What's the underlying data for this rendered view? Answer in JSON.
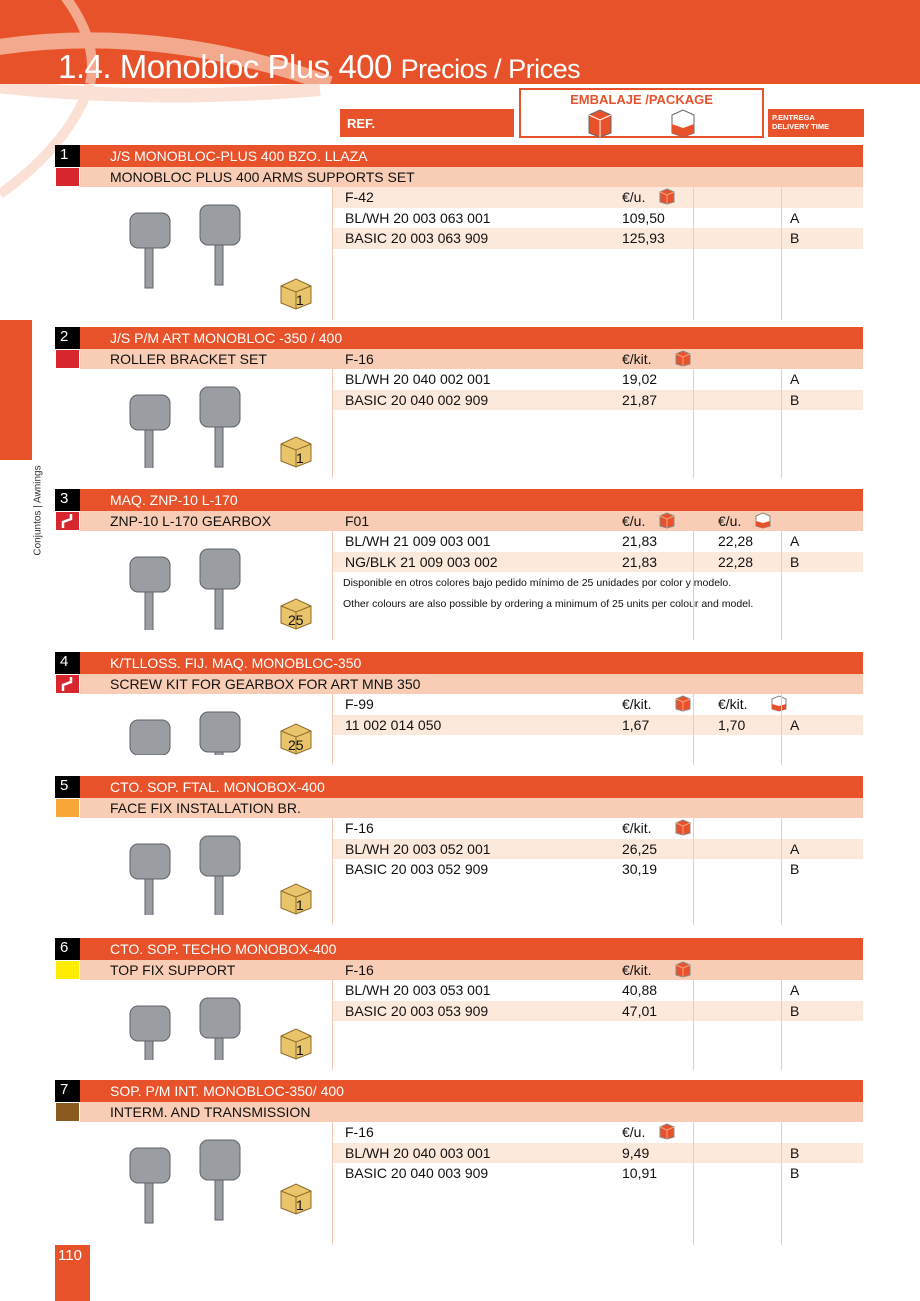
{
  "header": {
    "title_main": "1.4. Monobloc Plus 400",
    "title_sub": "Precios / Prices",
    "ref_label": "REF.",
    "package_label": "EMBALAJE /PACKAGE",
    "package_icons": [
      "box-closed-icon",
      "box-open-icon"
    ],
    "delivery_label_es": "P.ENTREGA",
    "delivery_label_en": "DELIVERY TIME"
  },
  "colors": {
    "accent": "#e8522a",
    "sub_band": "#f9cdb5",
    "light_band": "#fde8dc"
  },
  "side_tab": "Conjuntos | Awnings",
  "page_number": "110",
  "sections": [
    {
      "num": "1",
      "color": "#d7262e",
      "icon": "",
      "title": "J/S MONOBLOC-PLUS 400 BZO. LLAZA",
      "subtitle": "MONOBLOC PLUS 400 ARMS SUPPORTS SET",
      "pack_qty": "1",
      "sub_cells": {},
      "rows": [
        {
          "ref": "F-42",
          "p1": "€/u.",
          "p1icon": "closed"
        },
        {
          "ref": "BL/WH 20 003 063 001",
          "p1": "109,50",
          "d": "A"
        },
        {
          "ref": "BASIC   20 003 063 909",
          "p1": "125,93",
          "d": "B"
        }
      ]
    },
    {
      "num": "2",
      "color": "#d7262e",
      "icon": "",
      "title": "J/S P/M ART MONOBLOC -350 / 400",
      "subtitle": "ROLLER BRACKET SET",
      "pack_qty": "1",
      "sub_cells": {
        "ref": "F-16",
        "p1": "€/kit.",
        "p1icon": "closed"
      },
      "rows": [
        {
          "ref": "BL/WH 20 040 002 001",
          "p1": "19,02",
          "d": "A"
        },
        {
          "ref": "BASIC   20 040 002 909",
          "p1": "21,87",
          "d": "B"
        }
      ]
    },
    {
      "num": "3",
      "color": "#d7262e",
      "icon": "crank-icon",
      "title": "MAQ. ZNP-10 L-170",
      "subtitle": "ZNP-10 L-170 GEARBOX",
      "pack_qty": "25",
      "sub_cells": {
        "ref": "F01",
        "p1": "€/u.",
        "p1icon": "closed",
        "p2": "€/u.",
        "p2icon": "open"
      },
      "rows": [
        {
          "ref": "BL/WH  21 009 003 001",
          "p1": "21,83",
          "p2": "22,28",
          "d": "A"
        },
        {
          "ref": "NG/BLK 21 009 003 002",
          "p1": "21,83",
          "p2": "22,28",
          "d": "B"
        }
      ],
      "notes": [
        "Disponible en otros colores bajo pedido mínimo de 25 unidades por color y modelo.",
        "Other colours are also possible by ordering a minimum of 25 units per colour and model."
      ]
    },
    {
      "num": "4",
      "color": "#d7262e",
      "icon": "crank-icon",
      "title": "K/TLLOSS. FIJ. MAQ. MONOBLOC-350",
      "subtitle": "SCREW KIT FOR GEARBOX FOR  ART MNB 350",
      "pack_qty": "25",
      "sub_cells": {},
      "rows": [
        {
          "ref": "F-99",
          "p1": "€/kit.",
          "p1icon": "closed",
          "p2": "€/kit.",
          "p2icon": "open"
        },
        {
          "ref": "11 002 014 050",
          "p1": "1,67",
          "p2": "1,70",
          "d": "A"
        }
      ]
    },
    {
      "num": "5",
      "color": "#f7a738",
      "icon": "",
      "title": "CTO. SOP. FTAL. MONOBOX-400",
      "subtitle": "FACE FIX INSTALLATION BR.",
      "pack_qty": "1",
      "sub_cells": {},
      "rows": [
        {
          "ref": "F-16",
          "p1": "€/kit.",
          "p1icon": "closed"
        },
        {
          "ref": "BL/WH 20 003 052 001",
          "p1": "26,25",
          "d": "A"
        },
        {
          "ref": "BASIC   20 003 052 909",
          "p1": "30,19",
          "d": "B"
        }
      ]
    },
    {
      "num": "6",
      "color": "#ffec00",
      "icon": "",
      "title": "CTO. SOP. TECHO MONOBOX-400",
      "subtitle": "TOP FIX SUPPORT",
      "pack_qty": "1",
      "sub_cells": {
        "ref": "F-16",
        "p1": "€/kit.",
        "p1icon": "closed"
      },
      "rows": [
        {
          "ref": "BL/WH 20 003 053 001",
          "p1": "40,88",
          "d": "A"
        },
        {
          "ref": "BASIC   20 003 053 909",
          "p1": "47,01",
          "d": "B"
        }
      ]
    },
    {
      "num": "7",
      "color": "#8b5a1e",
      "icon": "",
      "title": "SOP. P/M INT. MONOBLOC-350/ 400",
      "subtitle": "INTERM. AND TRANSMISSION",
      "pack_qty": "1",
      "sub_cells": {},
      "rows": [
        {
          "ref": "F-16",
          "p1": "€/u.",
          "p1icon": "closed"
        },
        {
          "ref": "BL/WH 20 040 003 001",
          "p1": "9,49",
          "d": "B"
        },
        {
          "ref": "BASIC   20 040 003 909",
          "p1": "10,91",
          "d": "B"
        }
      ]
    }
  ]
}
